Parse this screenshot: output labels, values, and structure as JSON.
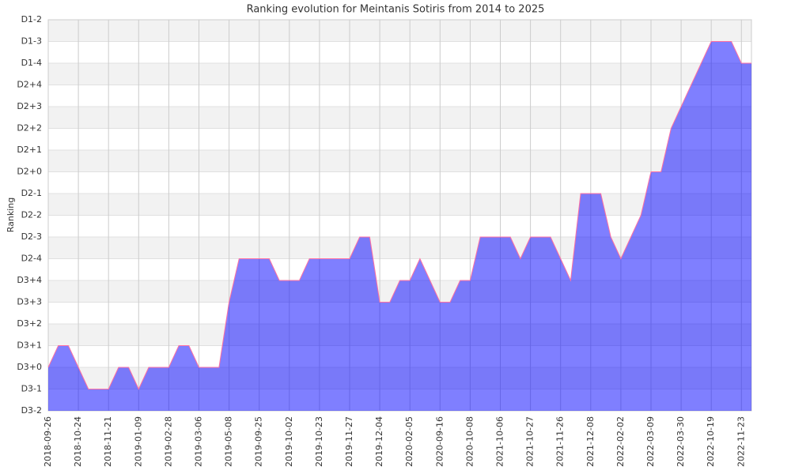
{
  "chart_data": {
    "type": "area",
    "title": "Ranking evolution for Meintanis Sotiris from 2014 to 2025",
    "y_label": "Ranking",
    "categories": [
      "2018-09-26",
      null,
      null,
      "2018-10-24",
      null,
      null,
      "2018-11-21",
      null,
      null,
      "2019-01-09",
      null,
      null,
      "2019-02-28",
      null,
      null,
      "2019-03-06",
      null,
      null,
      "2019-05-08",
      null,
      null,
      "2019-09-25",
      null,
      null,
      "2019-10-02",
      null,
      null,
      "2019-10-23",
      null,
      null,
      "2019-11-27",
      null,
      null,
      "2019-12-04",
      null,
      null,
      "2020-02-05",
      null,
      null,
      "2020-09-16",
      null,
      null,
      "2020-10-08",
      null,
      null,
      "2021-10-06",
      null,
      null,
      "2021-10-27",
      null,
      null,
      "2021-11-26",
      null,
      null,
      "2021-12-08",
      null,
      null,
      "2022-02-02",
      null,
      null,
      "2022-03-09",
      null,
      null,
      "2022-03-30",
      null,
      null,
      "2022-10-19",
      null,
      null,
      "2022-11-23",
      null
    ],
    "series": [
      {
        "name": "Ranking",
        "color": "#ff6fa0",
        "fill": "rgba(0,0,255,0.5)",
        "values": [
          2,
          3,
          3,
          2,
          1,
          1,
          1,
          2,
          2,
          1,
          2,
          2,
          2,
          3,
          3,
          2,
          2,
          2,
          5,
          7,
          7,
          7,
          7,
          6,
          6,
          6,
          7,
          7,
          7,
          7,
          7,
          8,
          8,
          5,
          5,
          6,
          6,
          7,
          6,
          5,
          5,
          6,
          6,
          8,
          8,
          8,
          8,
          7,
          8,
          8,
          8,
          7,
          6,
          10,
          10,
          10,
          8,
          7,
          8,
          9,
          11,
          11,
          13,
          14,
          15,
          16,
          17,
          17,
          17,
          16,
          16
        ]
      }
    ],
    "ylim": [
      0,
      18
    ],
    "yticks": [
      {
        "value": 0,
        "label": "D3-2"
      },
      {
        "value": 1,
        "label": "D3-1"
      },
      {
        "value": 2,
        "label": "D3+0"
      },
      {
        "value": 3,
        "label": "D3+1"
      },
      {
        "value": 4,
        "label": "D3+2"
      },
      {
        "value": 5,
        "label": "D3+3"
      },
      {
        "value": 6,
        "label": "D3+4"
      },
      {
        "value": 7,
        "label": "D2-4"
      },
      {
        "value": 8,
        "label": "D2-3"
      },
      {
        "value": 9,
        "label": "D2-2"
      },
      {
        "value": 10,
        "label": "D2-1"
      },
      {
        "value": 11,
        "label": "D2+0"
      },
      {
        "value": 12,
        "label": "D2+1"
      },
      {
        "value": 13,
        "label": "D2+2"
      },
      {
        "value": 14,
        "label": "D2+3"
      },
      {
        "value": 15,
        "label": "D2+4"
      },
      {
        "value": 16,
        "label": "D1-4"
      },
      {
        "value": 17,
        "label": "D1-3"
      },
      {
        "value": 18,
        "label": "D1-2"
      }
    ],
    "grid": true
  }
}
